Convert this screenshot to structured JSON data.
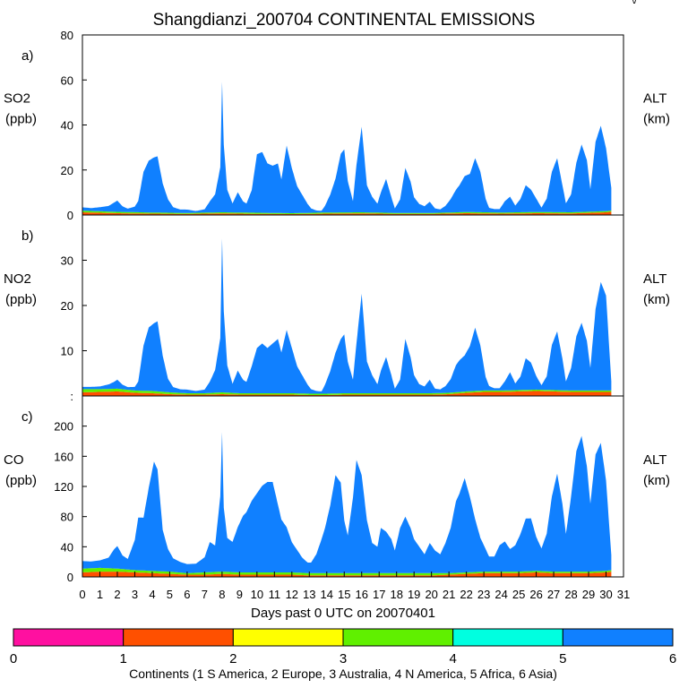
{
  "title": "Shangdianzi_200704 CONTINENTAL EMISSIONS",
  "corner_mark": "\\/",
  "x_axis": {
    "label": "Days past 0 UTC on 20070401",
    "ticks": [
      "0",
      "1",
      "2",
      "3",
      "4",
      "5",
      "6",
      "7",
      "8",
      "9",
      "10",
      "11",
      "12",
      "13",
      "14",
      "15",
      "16",
      "17",
      "18",
      "19",
      "20",
      "21",
      "22",
      "23",
      "24",
      "25",
      "26",
      "27",
      "28",
      "29",
      "30",
      "31"
    ]
  },
  "colorbar": {
    "colors": [
      "#ff10a0",
      "#ff5000",
      "#ffff00",
      "#60f000",
      "#00ffe0",
      "#1080ff"
    ],
    "tick_labels": [
      "0",
      "1",
      "2",
      "3",
      "4",
      "5",
      "6"
    ],
    "label": "Continents (1 S America, 2 Europe, 3 Australia, 4 N America, 5 Africa, 6 Asia)"
  },
  "chart_data": [
    {
      "type": "area",
      "panel": "a)",
      "ylabel": "SO2",
      "yunit": "(ppb)",
      "right_label": "ALT",
      "right_unit": "(km)",
      "ylim": [
        0,
        80
      ],
      "yticks": [
        0,
        20,
        40,
        60,
        80
      ],
      "xlim": [
        0,
        31
      ],
      "series": [
        {
          "name": "Europe",
          "color": "#ff5000",
          "x": [
            0,
            2,
            4,
            6,
            8,
            10,
            12,
            14,
            16,
            18,
            20,
            22,
            24,
            26,
            28,
            30,
            30.3
          ],
          "values": [
            1.2,
            0.8,
            0.6,
            0.5,
            0.7,
            0.5,
            0.4,
            0.6,
            0.7,
            0.5,
            0.5,
            0.8,
            0.6,
            0.8,
            0.7,
            1.2,
            1.5
          ]
        },
        {
          "name": "N America",
          "color": "#60f000",
          "x": [
            0,
            2,
            4,
            6,
            8,
            10,
            12,
            14,
            16,
            18,
            20,
            22,
            24,
            26,
            28,
            30,
            30.3
          ],
          "values": [
            0.7,
            0.6,
            0.5,
            0.4,
            0.5,
            0.5,
            0.4,
            0.5,
            0.5,
            0.4,
            0.4,
            0.5,
            0.5,
            0.5,
            0.5,
            0.5,
            0.5
          ]
        },
        {
          "name": "Asia",
          "color": "#1080ff",
          "x": [
            0,
            0.5,
            1,
            1.5,
            1.8,
            2,
            2.3,
            2.6,
            3,
            3.2,
            3.5,
            3.8,
            4.1,
            4.3,
            4.6,
            4.9,
            5.2,
            5.6,
            6,
            6.5,
            7,
            7.3,
            7.6,
            7.9,
            8.0,
            8.1,
            8.3,
            8.6,
            8.9,
            9.2,
            9.4,
            9.7,
            10,
            10.3,
            10.6,
            10.9,
            11.2,
            11.4,
            11.7,
            12,
            12.3,
            12.6,
            12.9,
            13.1,
            13.4,
            13.7,
            13.9,
            14.2,
            14.5,
            14.8,
            15,
            15.2,
            15.5,
            15.7,
            16,
            16.3,
            16.6,
            16.9,
            17.1,
            17.4,
            17.7,
            17.9,
            18.2,
            18.5,
            18.8,
            19,
            19.3,
            19.6,
            19.9,
            20.2,
            20.5,
            20.8,
            21.1,
            21.4,
            21.6,
            21.9,
            22.2,
            22.5,
            22.8,
            23.1,
            23.3,
            23.6,
            23.9,
            24.2,
            24.5,
            24.8,
            25.1,
            25.4,
            25.7,
            26,
            26.3,
            26.6,
            26.9,
            27.2,
            27.5,
            27.7,
            28,
            28.3,
            28.6,
            28.9,
            29.1,
            29.4,
            29.7,
            30,
            30.3
          ],
          "values": [
            1.5,
            1.3,
            1.8,
            2.5,
            4,
            5,
            2.5,
            1.5,
            2.5,
            5,
            18,
            23,
            24.5,
            25,
            13,
            6,
            2.5,
            1.5,
            1.5,
            0.8,
            1.5,
            5,
            8,
            20,
            58,
            30,
            10,
            4,
            9,
            5,
            4,
            10,
            26,
            27,
            22,
            21,
            22,
            15,
            30,
            20,
            12,
            8,
            4,
            2,
            1,
            0.8,
            3,
            8,
            15,
            26,
            28,
            14,
            5,
            21,
            38,
            12,
            7,
            4,
            9,
            15,
            7,
            2,
            6,
            20,
            14,
            7,
            4,
            3,
            5,
            2,
            1.5,
            3,
            6,
            10,
            12,
            16,
            17,
            24,
            18,
            6,
            2,
            1.5,
            1.5,
            5,
            7,
            3,
            6,
            12,
            10,
            6,
            2,
            6,
            18,
            24,
            12,
            4,
            8,
            22,
            30,
            23,
            10,
            31,
            38,
            28,
            10
          ]
        }
      ]
    },
    {
      "type": "area",
      "panel": "b)",
      "ylabel": "NO2",
      "yunit": "(ppb)",
      "right_label": "ALT",
      "right_unit": "(km)",
      "ylim": [
        0,
        40
      ],
      "yticks": [
        0,
        10,
        20,
        30
      ],
      "ytick_labels": [
        ":",
        "10",
        "20",
        "30"
      ],
      "xlim": [
        0,
        31
      ],
      "series": [
        {
          "name": "Europe",
          "color": "#ff5000",
          "x": [
            0,
            1,
            2,
            3,
            4,
            5,
            6,
            7,
            8,
            9,
            10,
            11,
            12,
            13,
            14,
            15,
            16,
            17,
            18,
            19,
            20,
            21,
            22,
            23,
            24,
            25,
            26,
            27,
            28,
            29,
            30,
            30.3
          ],
          "values": [
            0.8,
            0.9,
            1.0,
            0.7,
            0.6,
            0.4,
            0.3,
            0.3,
            0.4,
            0.3,
            0.3,
            0.3,
            0.3,
            0.2,
            0.2,
            0.3,
            0.3,
            0.3,
            0.3,
            0.3,
            0.3,
            0.4,
            0.7,
            0.9,
            0.9,
            1.0,
            1.1,
            1.0,
            0.9,
            0.9,
            0.9,
            0.9
          ]
        },
        {
          "name": "N America",
          "color": "#60f000",
          "x": [
            0,
            1,
            2,
            3,
            4,
            5,
            6,
            7,
            8,
            9,
            10,
            11,
            12,
            13,
            14,
            15,
            16,
            17,
            18,
            19,
            20,
            21,
            22,
            23,
            24,
            25,
            26,
            27,
            28,
            29,
            30,
            30.3
          ],
          "values": [
            0.7,
            0.6,
            0.6,
            0.5,
            0.5,
            0.4,
            0.3,
            0.3,
            0.4,
            0.3,
            0.3,
            0.3,
            0.3,
            0.3,
            0.3,
            0.3,
            0.3,
            0.3,
            0.3,
            0.3,
            0.3,
            0.3,
            0.3,
            0.3,
            0.3,
            0.3,
            0.3,
            0.3,
            0.3,
            0.3,
            0.3,
            0.3
          ]
        },
        {
          "name": "Asia",
          "color": "#1080ff",
          "x": [
            0,
            0.5,
            1,
            1.5,
            1.8,
            2,
            2.3,
            2.6,
            3,
            3.2,
            3.5,
            3.8,
            4.1,
            4.3,
            4.6,
            4.9,
            5.2,
            5.6,
            6,
            6.5,
            7,
            7.3,
            7.6,
            7.9,
            8.0,
            8.1,
            8.3,
            8.6,
            8.9,
            9.2,
            9.4,
            9.7,
            10,
            10.3,
            10.6,
            10.9,
            11.2,
            11.4,
            11.7,
            12,
            12.3,
            12.6,
            12.9,
            13.1,
            13.4,
            13.7,
            13.9,
            14.2,
            14.5,
            14.8,
            15,
            15.2,
            15.5,
            15.7,
            16,
            16.3,
            16.6,
            16.9,
            17.1,
            17.4,
            17.7,
            17.9,
            18.2,
            18.5,
            18.8,
            19,
            19.3,
            19.6,
            19.9,
            20.2,
            20.5,
            20.8,
            21.1,
            21.4,
            21.6,
            21.9,
            22.2,
            22.5,
            22.8,
            23.1,
            23.3,
            23.6,
            23.9,
            24.2,
            24.5,
            24.8,
            25.1,
            25.4,
            25.7,
            26,
            26.3,
            26.6,
            26.9,
            27.2,
            27.5,
            27.7,
            28,
            28.3,
            28.6,
            28.9,
            29.1,
            29.4,
            29.7,
            30,
            30.3
          ],
          "values": [
            0.5,
            0.5,
            0.6,
            1.0,
            1.5,
            2.0,
            1.0,
            0.6,
            0.8,
            2.0,
            10,
            14,
            15,
            15.5,
            8,
            3,
            1.2,
            0.8,
            0.8,
            0.5,
            0.8,
            2.5,
            5,
            12,
            34,
            18,
            6,
            2,
            5,
            3,
            2.5,
            6,
            10,
            11,
            10,
            11,
            12,
            9,
            14,
            10,
            6,
            4,
            2,
            1,
            0.6,
            0.5,
            2,
            5,
            9,
            12,
            13,
            7,
            3,
            11,
            22,
            7,
            4,
            2,
            5,
            8,
            4,
            1,
            3,
            12,
            8,
            4,
            2,
            1.5,
            3,
            1,
            0.8,
            1.5,
            3,
            6,
            7,
            8,
            10,
            14,
            10,
            3,
            1,
            0.5,
            0.5,
            2,
            4,
            1.5,
            3,
            7,
            6,
            3,
            1,
            3,
            10,
            13,
            7,
            2,
            5,
            12,
            15,
            11,
            5,
            18,
            24,
            21,
            2
          ]
        }
      ]
    },
    {
      "type": "area",
      "panel": "c)",
      "ylabel": "CO",
      "yunit": "(ppb)",
      "right_label": "ALT",
      "right_unit": "(km)",
      "ylim": [
        0,
        240
      ],
      "yticks": [
        0,
        40,
        80,
        120,
        160,
        200
      ],
      "xlim": [
        0,
        31
      ],
      "series": [
        {
          "name": "Europe",
          "color": "#ff5000",
          "x": [
            0,
            1,
            2,
            3,
            4,
            5,
            6,
            7,
            8,
            9,
            10,
            11,
            12,
            13,
            14,
            15,
            16,
            17,
            18,
            19,
            20,
            21,
            22,
            23,
            24,
            25,
            26,
            27,
            28,
            29,
            30,
            30.3
          ],
          "values": [
            6,
            7,
            7,
            6,
            5,
            4,
            3,
            3,
            4,
            3,
            3,
            3,
            3,
            2,
            2,
            2,
            2,
            2,
            2,
            2,
            2,
            3,
            4,
            5,
            5,
            5,
            6,
            5,
            5,
            5,
            6,
            7
          ]
        },
        {
          "name": "N America",
          "color": "#60f000",
          "x": [
            0,
            1,
            2,
            3,
            4,
            5,
            6,
            7,
            8,
            9,
            10,
            11,
            12,
            13,
            14,
            15,
            16,
            17,
            18,
            19,
            20,
            21,
            22,
            23,
            24,
            25,
            26,
            27,
            28,
            29,
            30,
            30.3
          ],
          "values": [
            5,
            5,
            4,
            3,
            3,
            3,
            2,
            3,
            3,
            3,
            3,
            3,
            3,
            3,
            3,
            3,
            3,
            3,
            3,
            3,
            3,
            2,
            2,
            2,
            2,
            2,
            2,
            2,
            2,
            2,
            2,
            2
          ]
        },
        {
          "name": "Asia",
          "color": "#1080ff",
          "x": [
            0,
            0.5,
            1,
            1.5,
            1.8,
            2,
            2.3,
            2.6,
            3,
            3.2,
            3.5,
            3.8,
            4.1,
            4.3,
            4.6,
            4.9,
            5.2,
            5.6,
            6,
            6.5,
            7,
            7.3,
            7.6,
            7.9,
            8.0,
            8.1,
            8.3,
            8.6,
            8.9,
            9.2,
            9.4,
            9.7,
            10,
            10.3,
            10.6,
            10.9,
            11.2,
            11.4,
            11.7,
            12,
            12.3,
            12.6,
            12.9,
            13.1,
            13.4,
            13.7,
            13.9,
            14.2,
            14.5,
            14.8,
            15,
            15.2,
            15.5,
            15.7,
            16,
            16.3,
            16.6,
            16.9,
            17.1,
            17.4,
            17.7,
            17.9,
            18.2,
            18.5,
            18.8,
            19,
            19.3,
            19.6,
            19.9,
            20.2,
            20.5,
            20.8,
            21.1,
            21.4,
            21.6,
            21.9,
            22.2,
            22.5,
            22.8,
            23.1,
            23.3,
            23.6,
            23.9,
            24.2,
            24.5,
            24.8,
            25.1,
            25.4,
            25.7,
            26,
            26.3,
            26.6,
            26.9,
            27.2,
            27.5,
            27.7,
            28,
            28.3,
            28.6,
            28.9,
            29.1,
            29.4,
            29.7,
            30,
            30.3
          ],
          "values": [
            10,
            9,
            10,
            14,
            25,
            30,
            18,
            14,
            40,
            70,
            70,
            110,
            145,
            135,
            55,
            30,
            18,
            14,
            12,
            12,
            20,
            40,
            35,
            100,
            185,
            85,
            45,
            40,
            60,
            75,
            80,
            95,
            105,
            115,
            120,
            120,
            90,
            70,
            60,
            40,
            30,
            20,
            14,
            14,
            25,
            45,
            60,
            90,
            130,
            120,
            70,
            50,
            100,
            150,
            130,
            70,
            40,
            35,
            60,
            55,
            45,
            30,
            60,
            75,
            60,
            45,
            35,
            25,
            40,
            30,
            25,
            40,
            60,
            95,
            105,
            125,
            100,
            70,
            45,
            30,
            20,
            20,
            35,
            40,
            30,
            35,
            50,
            70,
            70,
            45,
            30,
            50,
            100,
            130,
            90,
            50,
            100,
            160,
            180,
            140,
            90,
            155,
            170,
            120,
            20
          ]
        }
      ]
    }
  ]
}
